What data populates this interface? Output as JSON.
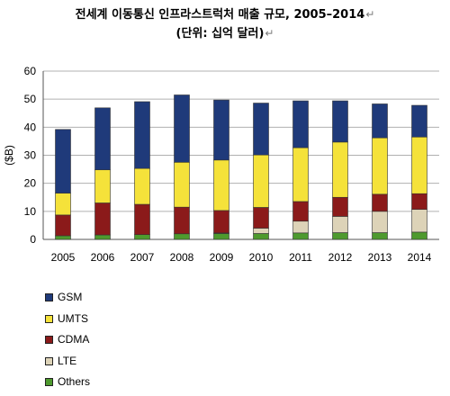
{
  "title": {
    "line1": "전세계 이동통신 인프라스트럭처 매출 규모, 2005–2014",
    "line2": "(단위: 십억 달러)",
    "return_mark": "↵"
  },
  "colors": {
    "GSM": "#1f3a7a",
    "UMTS": "#f5e23a",
    "CDMA": "#8b1a1a",
    "LTE": "#ddd3b8",
    "Others": "#4e9a2e",
    "grid": "#b0b0b0",
    "axis": "#555555"
  },
  "chart_data": {
    "type": "bar",
    "stacked": true,
    "categories": [
      "2005",
      "2006",
      "2007",
      "2008",
      "2009",
      "2010",
      "2011",
      "2012",
      "2013",
      "2014"
    ],
    "series": [
      {
        "name": "Others",
        "values": [
          1.3,
          1.6,
          1.7,
          2.0,
          2.1,
          2.1,
          2.3,
          2.4,
          2.4,
          2.6
        ]
      },
      {
        "name": "LTE",
        "values": [
          0,
          0,
          0,
          0,
          0.2,
          1.9,
          4.2,
          5.8,
          7.6,
          8.1
        ]
      },
      {
        "name": "CDMA",
        "values": [
          7.4,
          11.4,
          10.8,
          9.5,
          8.0,
          7.4,
          7.0,
          6.8,
          6.1,
          5.6
        ]
      },
      {
        "name": "UMTS",
        "values": [
          7.8,
          11.8,
          12.8,
          16.0,
          18.0,
          18.7,
          19.2,
          19.7,
          20.1,
          20.2
        ]
      },
      {
        "name": "GSM",
        "values": [
          22.7,
          22.1,
          23.8,
          24.0,
          21.4,
          18.5,
          16.7,
          14.7,
          12.1,
          11.3
        ]
      }
    ],
    "ylabel": "($B)",
    "xlabel": "",
    "ylim": [
      0,
      60
    ],
    "yticks": [
      "0",
      "10",
      "20",
      "30",
      "40",
      "50",
      "60"
    ],
    "grid": true,
    "legend_position": "bottom-left",
    "legend_order": [
      "GSM",
      "UMTS",
      "CDMA",
      "LTE",
      "Others"
    ]
  }
}
